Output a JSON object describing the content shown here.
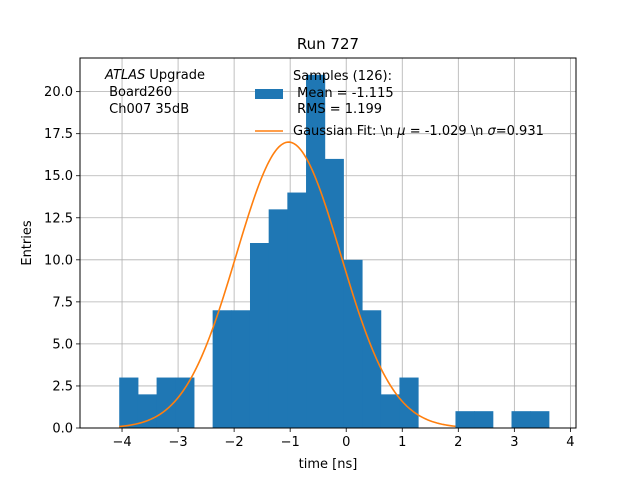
{
  "chart_data": {
    "type": "bar",
    "title": "Run 727",
    "xlabel": "time [ns]",
    "ylabel": "Entries",
    "xlim": [
      -4.75,
      4.1
    ],
    "ylim": [
      0,
      22.0
    ],
    "xticks": [
      -4,
      -3,
      -2,
      -1,
      0,
      1,
      2,
      3,
      4
    ],
    "yticks": [
      0.0,
      2.5,
      5.0,
      7.5,
      10.0,
      12.5,
      15.0,
      17.5,
      20.0
    ],
    "xtick_labels": [
      "−4",
      "−3",
      "−2",
      "−1",
      "0",
      "1",
      "2",
      "3",
      "4"
    ],
    "ytick_labels": [
      "0.0",
      "2.5",
      "5.0",
      "7.5",
      "10.0",
      "12.5",
      "15.0",
      "17.5",
      "20.0"
    ],
    "grid": true,
    "bin_width": 0.3333,
    "bin_edges_start": -4.05,
    "histogram": {
      "name": "Samples (126):\n Mean = -1.115\n RMS = 1.199",
      "color": "#1f77b4",
      "values": [
        3,
        2,
        3,
        3,
        0,
        7,
        7,
        11,
        13,
        14,
        21,
        16,
        10,
        7,
        2,
        3,
        0,
        0,
        1,
        1,
        0,
        1,
        1
      ]
    },
    "fit": {
      "name": "Gaussian Fit: \\n $\\mu$ = -1.029 \\n $\\sigma$=0.931",
      "color": "#ff7f0e",
      "amplitude": 17.0,
      "mu": -1.029,
      "sigma": 0.931,
      "x_range": [
        -4.05,
        1.95
      ]
    },
    "annotation": {
      "line1_italic": "ATLAS",
      "line1_rest": " Upgrade",
      "line2": " Board260",
      "line3": " Ch007 35dB"
    },
    "legend": {
      "placement": "top-right",
      "hist_lines": [
        "Samples (126):",
        " Mean = -1.115",
        " RMS = 1.199"
      ],
      "fit_parts": [
        "Gaussian Fit: \\n ",
        "μ",
        " = -1.029 \\n ",
        "σ",
        "=0.931"
      ]
    }
  }
}
